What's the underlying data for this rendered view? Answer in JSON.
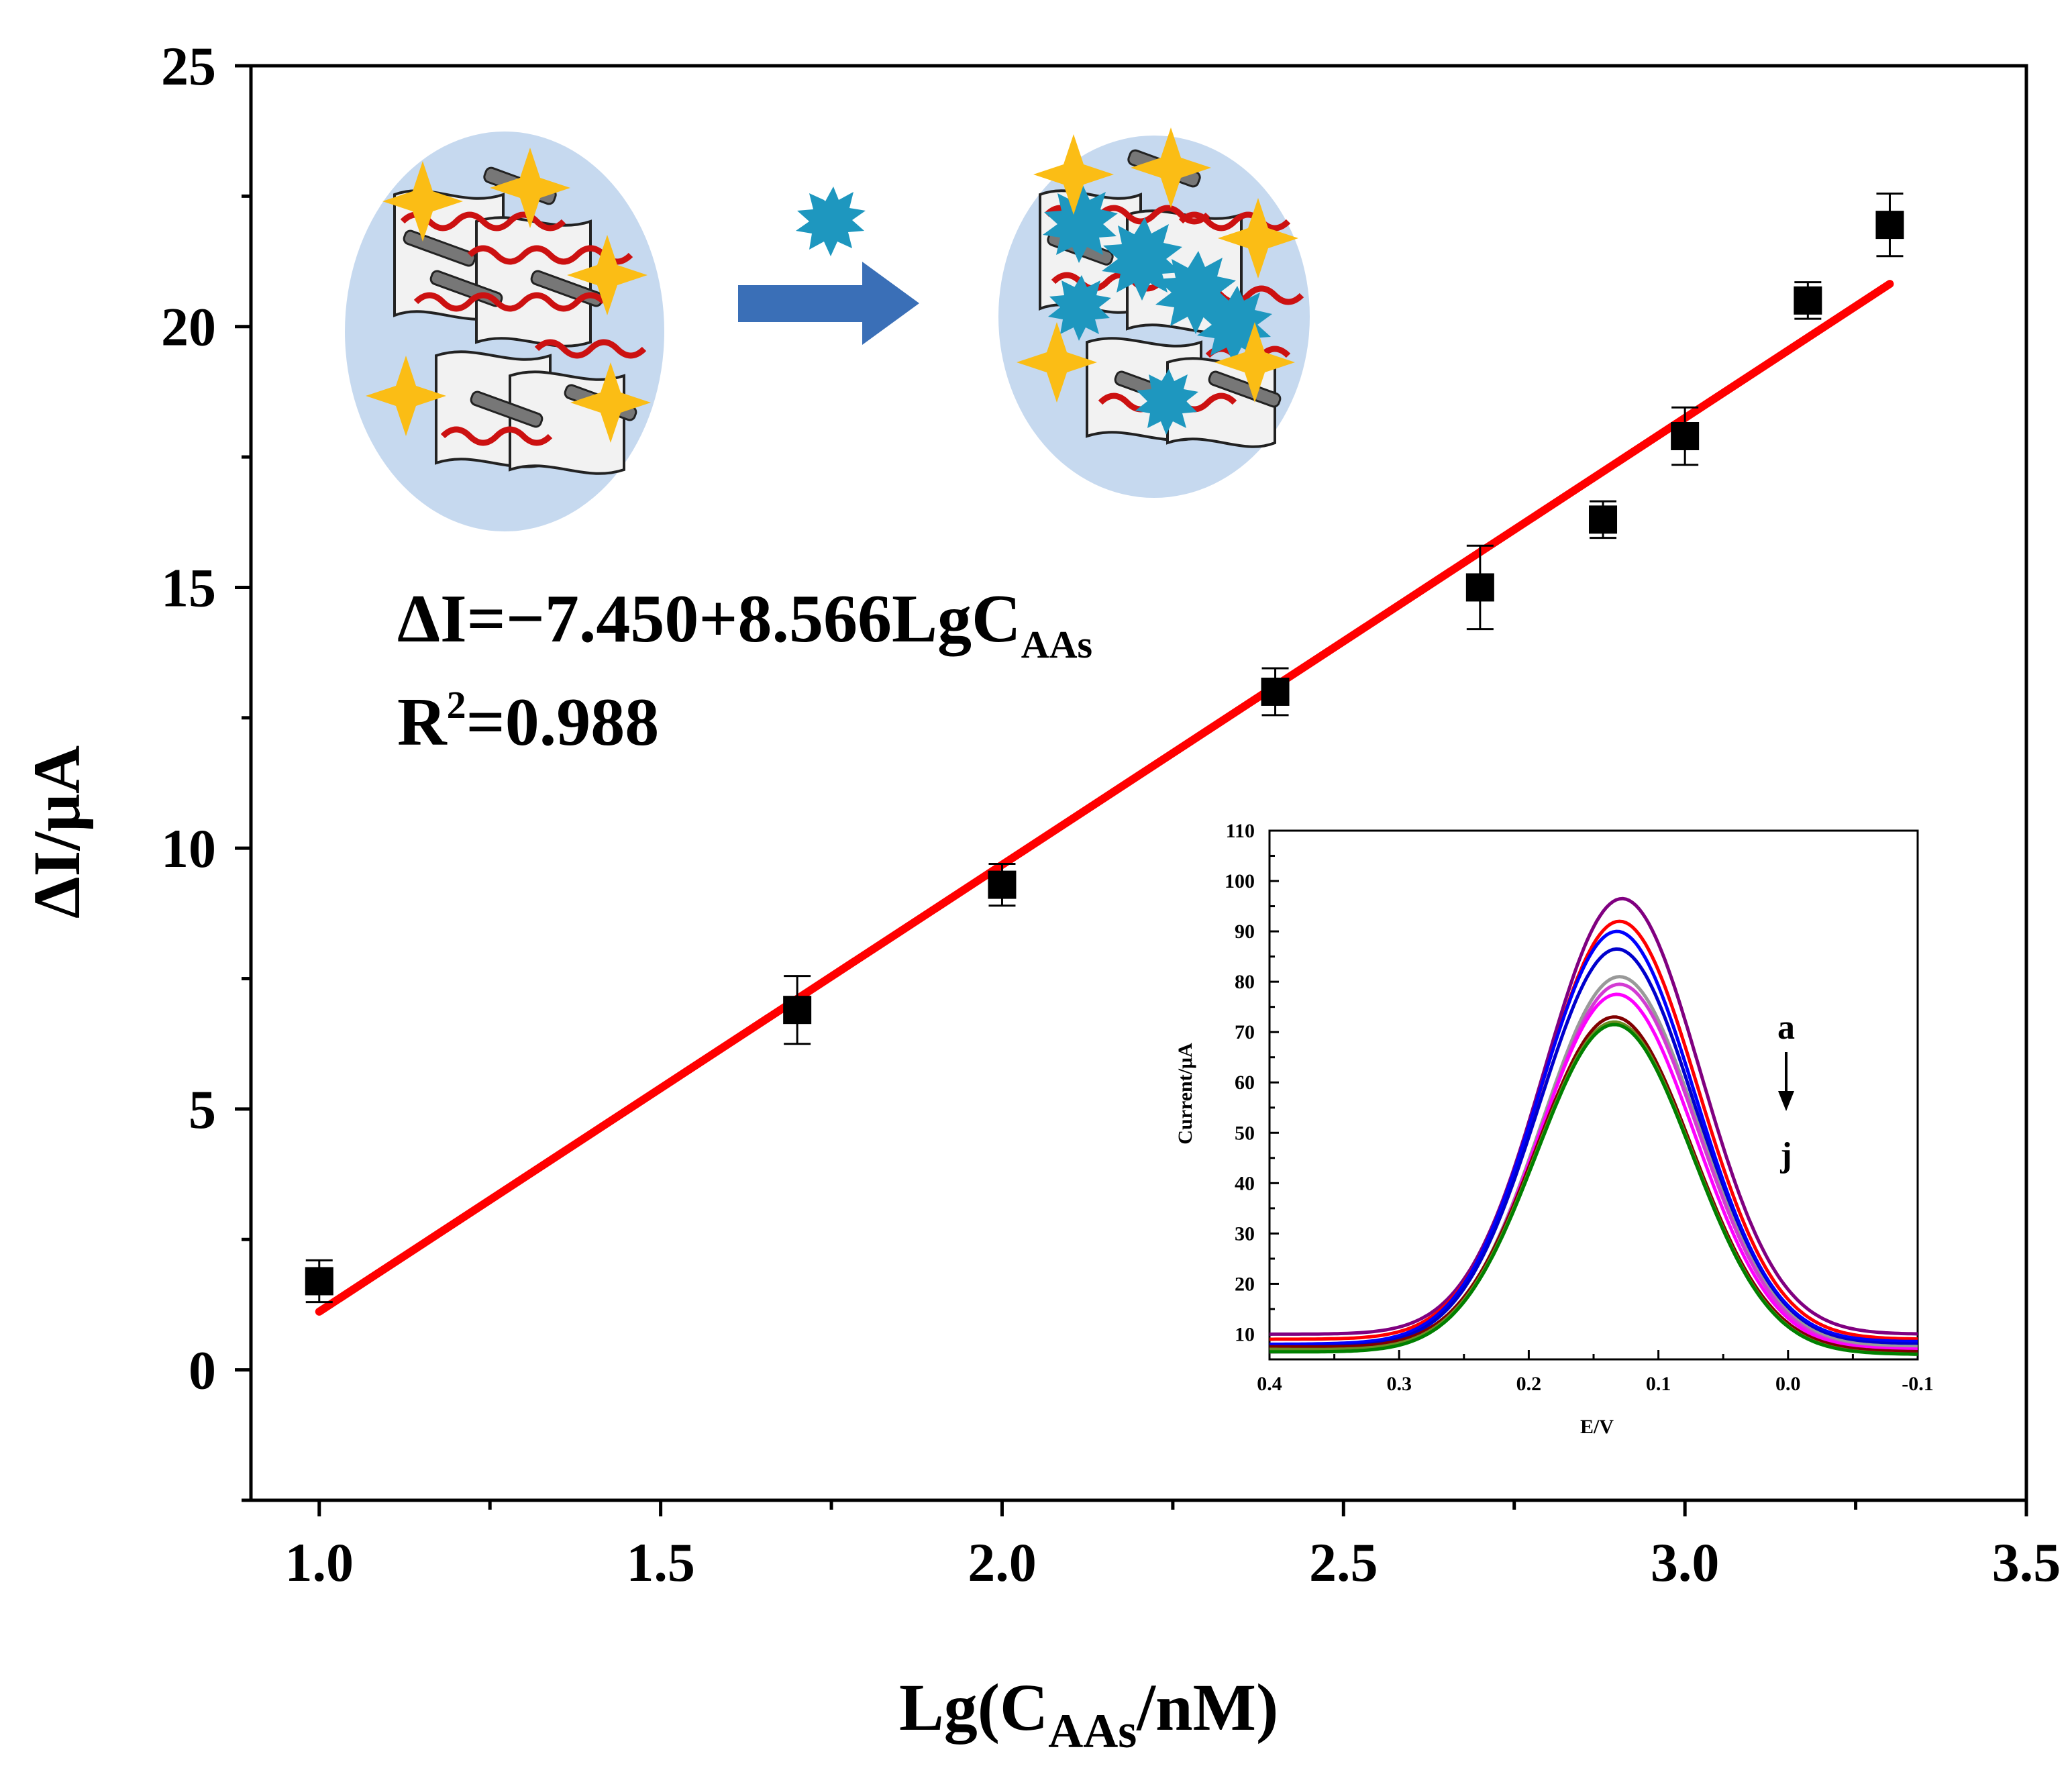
{
  "chart_data": [
    {
      "type": "scatter",
      "xlabel": {
        "prefix": "Lg(C",
        "sub": "AAs",
        "suffix": "/nM)"
      },
      "ylabel": "ΔI/μA",
      "xlim": [
        0.9,
        3.5
      ],
      "ylim": [
        -2.5,
        25
      ],
      "x_ticks": [
        "1.0",
        "1.5",
        "2.0",
        "2.5",
        "3.0",
        "3.5"
      ],
      "x_tick_values": [
        1.0,
        1.5,
        2.0,
        2.5,
        3.0,
        3.5
      ],
      "y_ticks": [
        "0",
        "5",
        "10",
        "15",
        "20",
        "25"
      ],
      "y_tick_values": [
        0,
        5,
        10,
        15,
        20,
        25
      ],
      "points": [
        {
          "x": 1.0,
          "y": 1.7,
          "err": 0.4
        },
        {
          "x": 1.7,
          "y": 6.9,
          "err": 0.65
        },
        {
          "x": 2.0,
          "y": 9.3,
          "err": 0.4
        },
        {
          "x": 2.4,
          "y": 13.0,
          "err": 0.45
        },
        {
          "x": 2.7,
          "y": 15.0,
          "err": 0.8
        },
        {
          "x": 2.88,
          "y": 16.3,
          "err": 0.35
        },
        {
          "x": 3.0,
          "y": 17.9,
          "err": 0.55
        },
        {
          "x": 3.18,
          "y": 20.5,
          "err": 0.35
        },
        {
          "x": 3.3,
          "y": 21.95,
          "err": 0.6
        }
      ],
      "fit": {
        "intercept": -7.45,
        "slope": 8.566,
        "x_range": [
          1.0,
          3.3
        ]
      },
      "equation": {
        "line1_prefix": "ΔI=−7.450+8.566LgC",
        "line1_sub": "AAs",
        "line2_a": "R",
        "line2_sup": "2",
        "line2_b": "=0.988"
      },
      "colors": {
        "points": "#000000",
        "fit": "#ff0000"
      }
    },
    {
      "type": "line",
      "xlabel": "E/V",
      "ylabel": "Current/μA",
      "xlim": [
        0.4,
        -0.1
      ],
      "ylim": [
        5,
        110
      ],
      "x_ticks": [
        "0.4",
        "0.3",
        "0.2",
        "0.1",
        "0.0",
        "-0.1"
      ],
      "x_tick_values": [
        0.4,
        0.3,
        0.2,
        0.1,
        0.0,
        -0.1
      ],
      "y_ticks": [
        "10",
        "20",
        "30",
        "40",
        "50",
        "60",
        "70",
        "80",
        "90",
        "100",
        "110"
      ],
      "y_tick_values": [
        10,
        20,
        30,
        40,
        50,
        60,
        70,
        80,
        90,
        100,
        110
      ],
      "series": [
        {
          "color": "#800080",
          "peak_x": 0.128,
          "peak": 96.5,
          "base_left": 10.0,
          "base_right": 10.0
        },
        {
          "color": "#ff0000",
          "peak_x": 0.13,
          "peak": 92.0,
          "base_left": 9.0,
          "base_right": 9.0
        },
        {
          "color": "#0000ff",
          "peak_x": 0.132,
          "peak": 90.0,
          "base_left": 8.0,
          "base_right": 8.5
        },
        {
          "color": "#0000cc",
          "peak_x": 0.132,
          "peak": 86.5,
          "base_left": 7.5,
          "base_right": 8.0
        },
        {
          "color": "#999999",
          "peak_x": 0.13,
          "peak": 81.0,
          "base_left": 7.0,
          "base_right": 7.5
        },
        {
          "color": "#d33bd3",
          "peak_x": 0.13,
          "peak": 79.5,
          "base_left": 7.0,
          "base_right": 7.0
        },
        {
          "color": "#ff00ff",
          "peak_x": 0.132,
          "peak": 77.5,
          "base_left": 6.5,
          "base_right": 7.0
        },
        {
          "color": "#800000",
          "peak_x": 0.134,
          "peak": 73.0,
          "base_left": 7.5,
          "base_right": 6.5
        },
        {
          "color": "#6b8e23",
          "peak_x": 0.134,
          "peak": 72.0,
          "base_left": 7.0,
          "base_right": 6.0
        },
        {
          "color": "#008000",
          "peak_x": 0.134,
          "peak": 71.5,
          "base_left": 6.5,
          "base_right": 6.0
        }
      ],
      "annotation": {
        "top": "a",
        "bottom": "j"
      }
    }
  ],
  "scheme_icons": [
    "nanocomposite-before-icon",
    "target-molecule-icon",
    "right-arrow-icon",
    "nanocomposite-after-icon"
  ]
}
